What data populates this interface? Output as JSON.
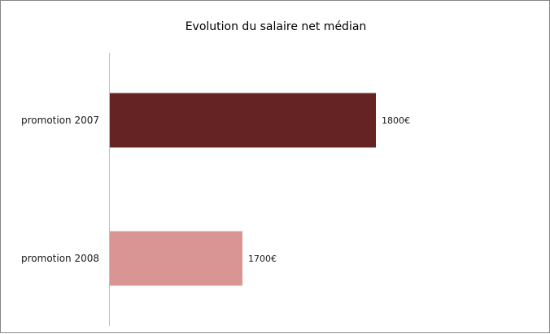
{
  "chart_data": {
    "type": "bar",
    "orientation": "horizontal",
    "title": "Evolution du salaire net médian",
    "categories": [
      "promotion 2007",
      "promotion 2008"
    ],
    "values": [
      1800,
      1700
    ],
    "data_labels": [
      "1800€",
      "1700€"
    ],
    "colors": [
      "#652323",
      "#d99594"
    ],
    "xlim": [
      1600,
      1900
    ],
    "axis_color": "#bfbfbf",
    "grid": false,
    "legend": "none",
    "xlabel": "",
    "ylabel": ""
  }
}
